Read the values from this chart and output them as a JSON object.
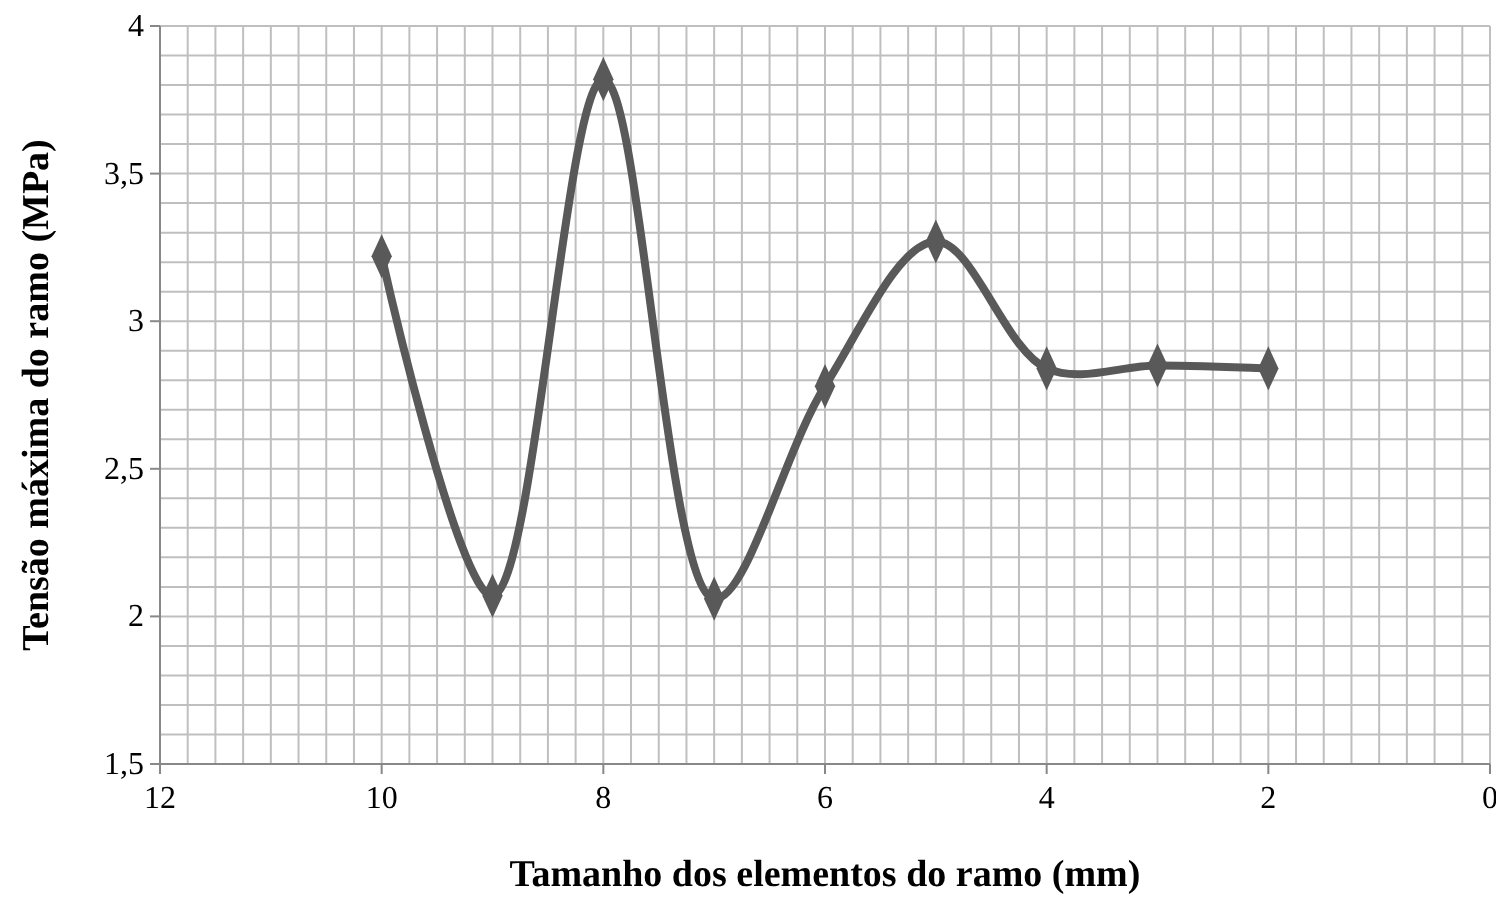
{
  "chart_data": {
    "type": "line",
    "xlabel": "Tamanho dos elementos do ramo (mm)",
    "ylabel": "Tensão máxima do ramo  (MPa)",
    "x": [
      10,
      9,
      8,
      7,
      6,
      5,
      4,
      3,
      2
    ],
    "series": [
      {
        "color": "#595959",
        "values": [
          3.22,
          2.07,
          3.82,
          2.06,
          2.78,
          3.27,
          2.84,
          2.85,
          2.84
        ]
      }
    ],
    "xlim": [
      12,
      0
    ],
    "xticks": [
      12,
      {
        "value": 11.75,
        "label": null
      },
      {
        "value": 11.5,
        "label": null
      },
      {
        "value": 11.25,
        "label": null
      },
      {
        "value": 11,
        "label": null
      },
      {
        "value": 10.75,
        "label": null
      },
      {
        "value": 10.5,
        "label": null
      },
      {
        "value": 10.25,
        "label": null
      },
      10,
      {
        "value": 9.75,
        "label": null
      },
      {
        "value": 9.5,
        "label": null
      },
      {
        "value": 9.25,
        "label": null
      },
      {
        "value": 9,
        "label": null
      },
      {
        "value": 8.75,
        "label": null
      },
      {
        "value": 8.5,
        "label": null
      },
      {
        "value": 8.25,
        "label": null
      },
      8,
      {
        "value": 7.75,
        "label": null
      },
      {
        "value": 7.5,
        "label": null
      },
      {
        "value": 7.25,
        "label": null
      },
      {
        "value": 7,
        "label": null
      },
      {
        "value": 6.75,
        "label": null
      },
      {
        "value": 6.5,
        "label": null
      },
      {
        "value": 6.25,
        "label": null
      },
      6,
      {
        "value": 5.75,
        "label": null
      },
      {
        "value": 5.5,
        "label": null
      },
      {
        "value": 5.25,
        "label": null
      },
      {
        "value": 5,
        "label": null
      },
      {
        "value": 4.75,
        "label": null
      },
      {
        "value": 4.5,
        "label": null
      },
      {
        "value": 4.25,
        "label": null
      },
      4,
      {
        "value": 3.75,
        "label": null
      },
      {
        "value": 3.5,
        "label": null
      },
      {
        "value": 3.25,
        "label": null
      },
      {
        "value": 3,
        "label": null
      },
      {
        "value": 2.75,
        "label": null
      },
      {
        "value": 2.5,
        "label": null
      },
      {
        "value": 2.25,
        "label": null
      },
      2,
      {
        "value": 1.75,
        "label": null
      },
      {
        "value": 1.5,
        "label": null
      },
      {
        "value": 1.25,
        "label": null
      },
      {
        "value": 1,
        "label": null
      },
      {
        "value": 0.75,
        "label": null
      },
      {
        "value": 0.5,
        "label": null
      },
      {
        "value": 0.25,
        "label": null
      },
      0
    ],
    "ylim": [
      1.5,
      4
    ],
    "yticks": [
      {
        "value": 1.5,
        "label": "1,5"
      },
      {
        "value": 1.6,
        "label": null
      },
      {
        "value": 1.7,
        "label": null
      },
      {
        "value": 1.8,
        "label": null
      },
      {
        "value": 1.9,
        "label": null
      },
      2,
      {
        "value": 2.1,
        "label": null
      },
      {
        "value": 2.2,
        "label": null
      },
      {
        "value": 2.3,
        "label": null
      },
      {
        "value": 2.4,
        "label": null
      },
      {
        "value": 2.5,
        "label": "2,5"
      },
      {
        "value": 2.6,
        "label": null
      },
      {
        "value": 2.7,
        "label": null
      },
      {
        "value": 2.8,
        "label": null
      },
      {
        "value": 2.9,
        "label": null
      },
      3,
      {
        "value": 3.1,
        "label": null
      },
      {
        "value": 3.2,
        "label": null
      },
      {
        "value": 3.3,
        "label": null
      },
      {
        "value": 3.4,
        "label": null
      },
      {
        "value": 3.5,
        "label": "3,5"
      },
      {
        "value": 3.6,
        "label": null
      },
      {
        "value": 3.7,
        "label": null
      },
      {
        "value": 3.8,
        "label": null
      },
      {
        "value": 3.9,
        "label": null
      },
      4
    ],
    "grid": true,
    "marker": "diamond",
    "line_style": "solid"
  }
}
